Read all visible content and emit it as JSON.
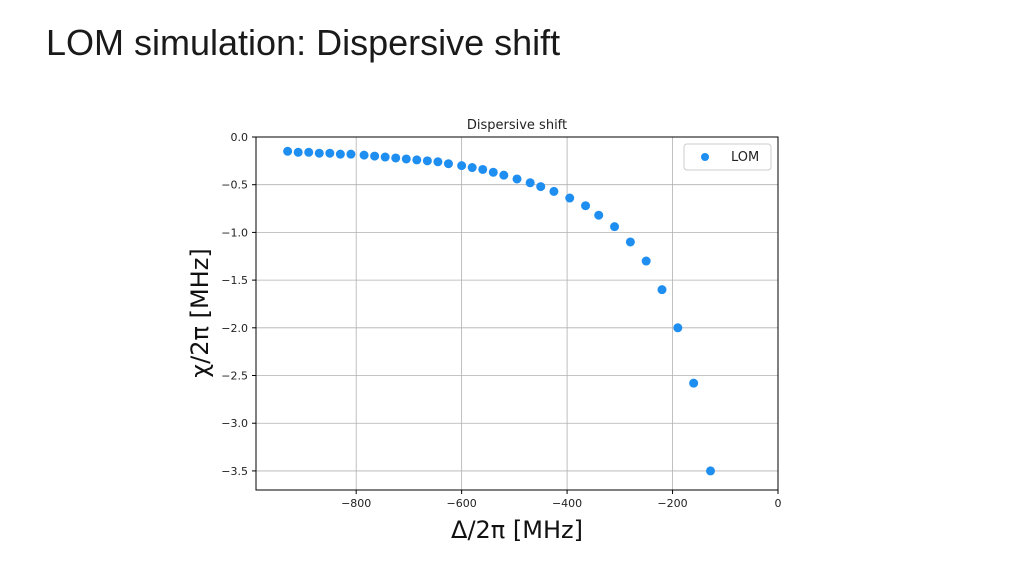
{
  "slide": {
    "title": "LOM simulation: Dispersive shift"
  },
  "colors": {
    "series": "#1f8ef1",
    "grid": "#b0b0b0",
    "axis": "#000000"
  },
  "chart_data": {
    "type": "scatter",
    "title": "Dispersive shift",
    "xlabel": "Δ/2π [MHz]",
    "ylabel": "χ/2π [MHz]",
    "xlim": [
      -990,
      0
    ],
    "ylim": [
      -3.7,
      0
    ],
    "xticks": [
      -800,
      -600,
      -400,
      -200,
      0
    ],
    "xtick_labels": [
      "−800",
      "−600",
      "−400",
      "−200",
      "0"
    ],
    "yticks": [
      0.0,
      -0.5,
      -1.0,
      -1.5,
      -2.0,
      -2.5,
      -3.0,
      -3.5
    ],
    "ytick_labels": [
      "0.0",
      "−0.5",
      "−1.0",
      "−1.5",
      "−2.0",
      "−2.5",
      "−3.0",
      "−3.5"
    ],
    "grid": true,
    "legend_position": "top-right",
    "series": [
      {
        "name": "LOM",
        "x": [
          -930,
          -910,
          -890,
          -870,
          -850,
          -830,
          -810,
          -785,
          -765,
          -745,
          -725,
          -705,
          -685,
          -665,
          -645,
          -625,
          -600,
          -580,
          -560,
          -540,
          -520,
          -495,
          -470,
          -450,
          -425,
          -395,
          -365,
          -340,
          -310,
          -280,
          -250,
          -220,
          -190,
          -160,
          -128
        ],
        "y": [
          -0.15,
          -0.16,
          -0.16,
          -0.17,
          -0.17,
          -0.18,
          -0.18,
          -0.19,
          -0.2,
          -0.21,
          -0.22,
          -0.23,
          -0.24,
          -0.25,
          -0.26,
          -0.28,
          -0.3,
          -0.32,
          -0.34,
          -0.37,
          -0.4,
          -0.44,
          -0.48,
          -0.52,
          -0.57,
          -0.64,
          -0.72,
          -0.82,
          -0.94,
          -1.1,
          -1.3,
          -1.6,
          -2.0,
          -2.58,
          -3.5
        ]
      }
    ]
  }
}
